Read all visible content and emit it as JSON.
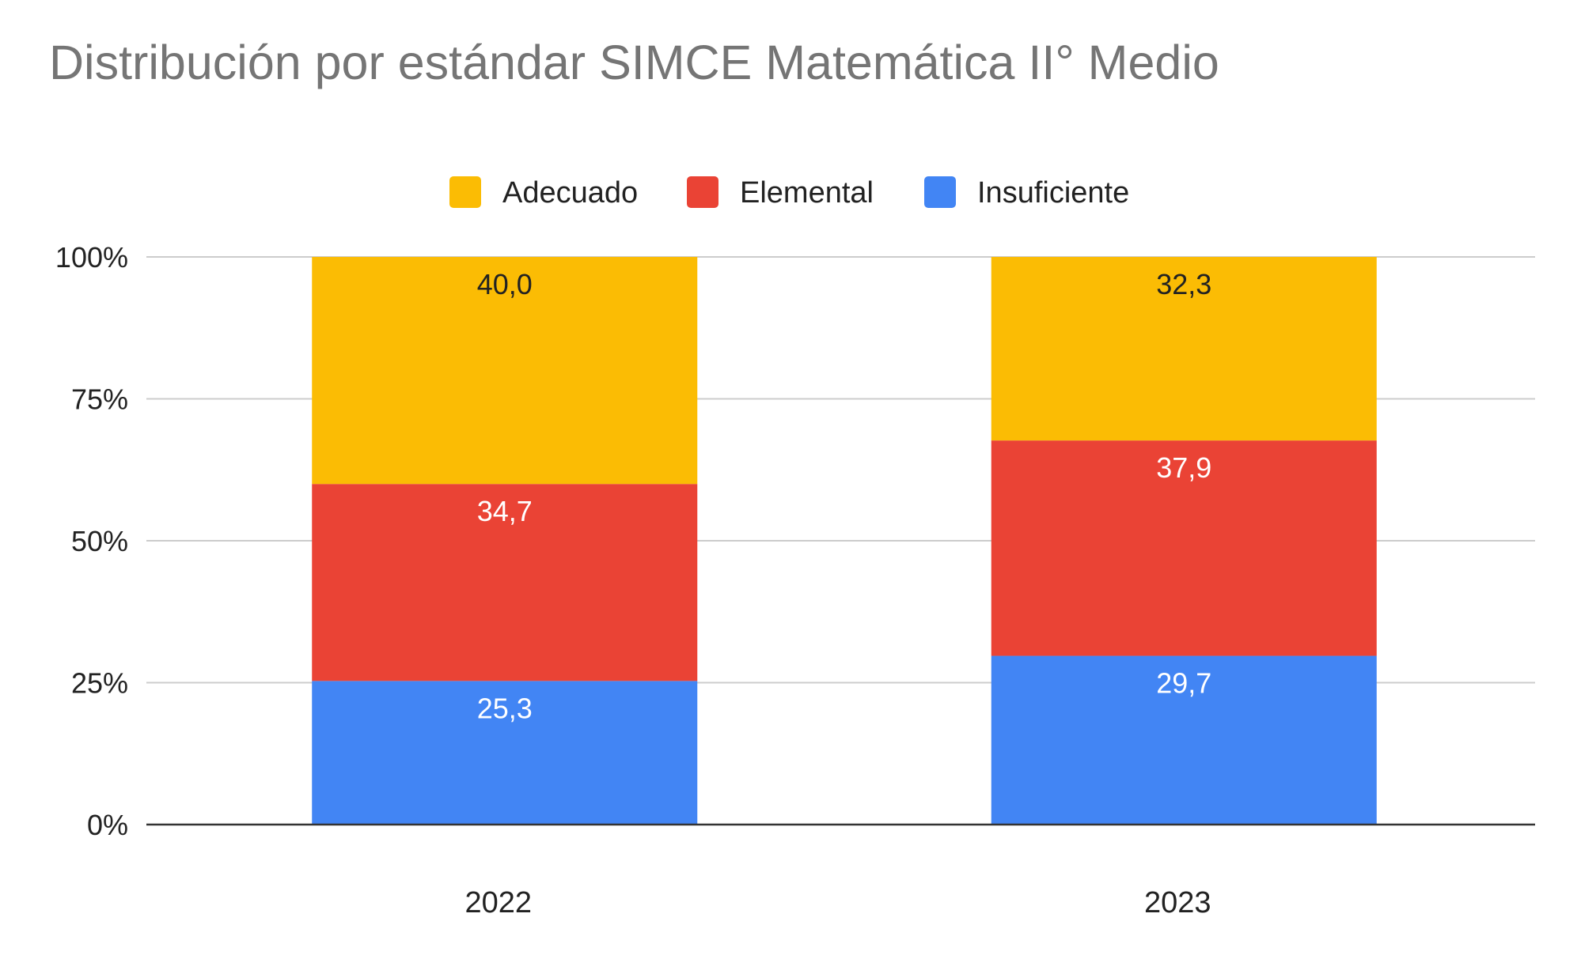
{
  "chart_data": {
    "type": "bar",
    "stacked": true,
    "normalized": true,
    "title": "Distribución por estándar SIMCE Matemática II° Medio",
    "categories": [
      "2022",
      "2023"
    ],
    "series": [
      {
        "name": "Insuficiente",
        "values": [
          25.3,
          29.7
        ],
        "color": "#4285F4",
        "label_color": "#ffffff"
      },
      {
        "name": "Elemental",
        "values": [
          34.7,
          37.9
        ],
        "color": "#EA4335",
        "label_color": "#ffffff"
      },
      {
        "name": "Adecuado",
        "values": [
          40.0,
          32.3
        ],
        "color": "#FBBC04",
        "label_color": "#222222"
      }
    ],
    "data_labels": [
      [
        "25,3",
        "29,7"
      ],
      [
        "34,7",
        "37,9"
      ],
      [
        "40,0",
        "32,3"
      ]
    ],
    "legend_order": [
      "Adecuado",
      "Elemental",
      "Insuficiente"
    ],
    "legend_position": "top",
    "y_ticks": [
      "0%",
      "25%",
      "50%",
      "75%",
      "100%"
    ],
    "ylim": [
      0,
      100
    ],
    "grid": true,
    "xlabel": "",
    "ylabel": ""
  }
}
